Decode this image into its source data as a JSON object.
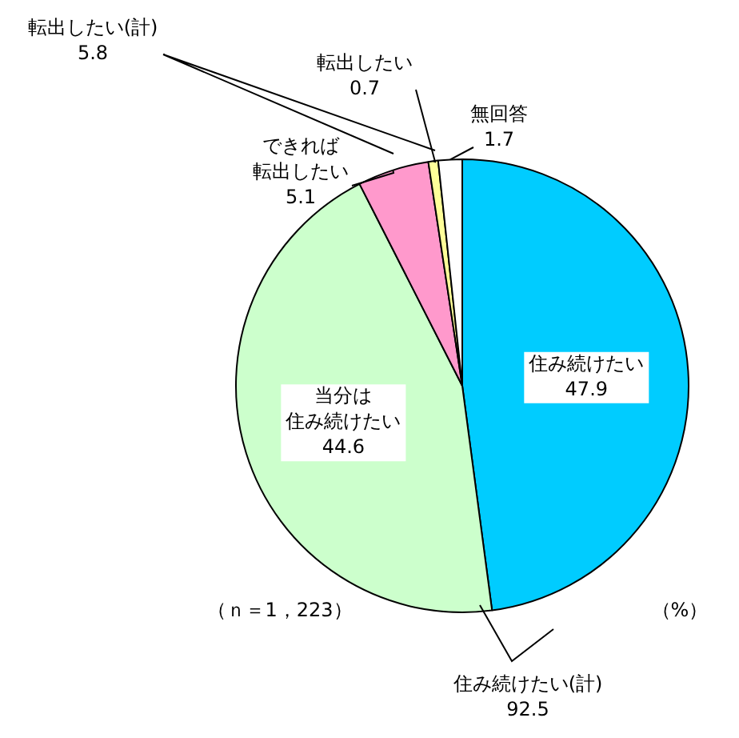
{
  "chart_data": {
    "type": "pie",
    "categories": [
      "住み続けたい",
      "当分は住み続けたい",
      "できれば転出したい",
      "転出したい",
      "無回答"
    ],
    "values": [
      47.9,
      44.6,
      5.1,
      0.7,
      1.7
    ],
    "colors": [
      "#00ccff",
      "#ccffcc",
      "#ff99cc",
      "#ffff99",
      "#ffffff"
    ],
    "data_labels": true,
    "legend": false,
    "annotations": [
      "転出したい(計)\n5.8",
      "住み続けたい(計)\n92.5",
      "（ｎ＝1，223）",
      "（%）"
    ]
  }
}
